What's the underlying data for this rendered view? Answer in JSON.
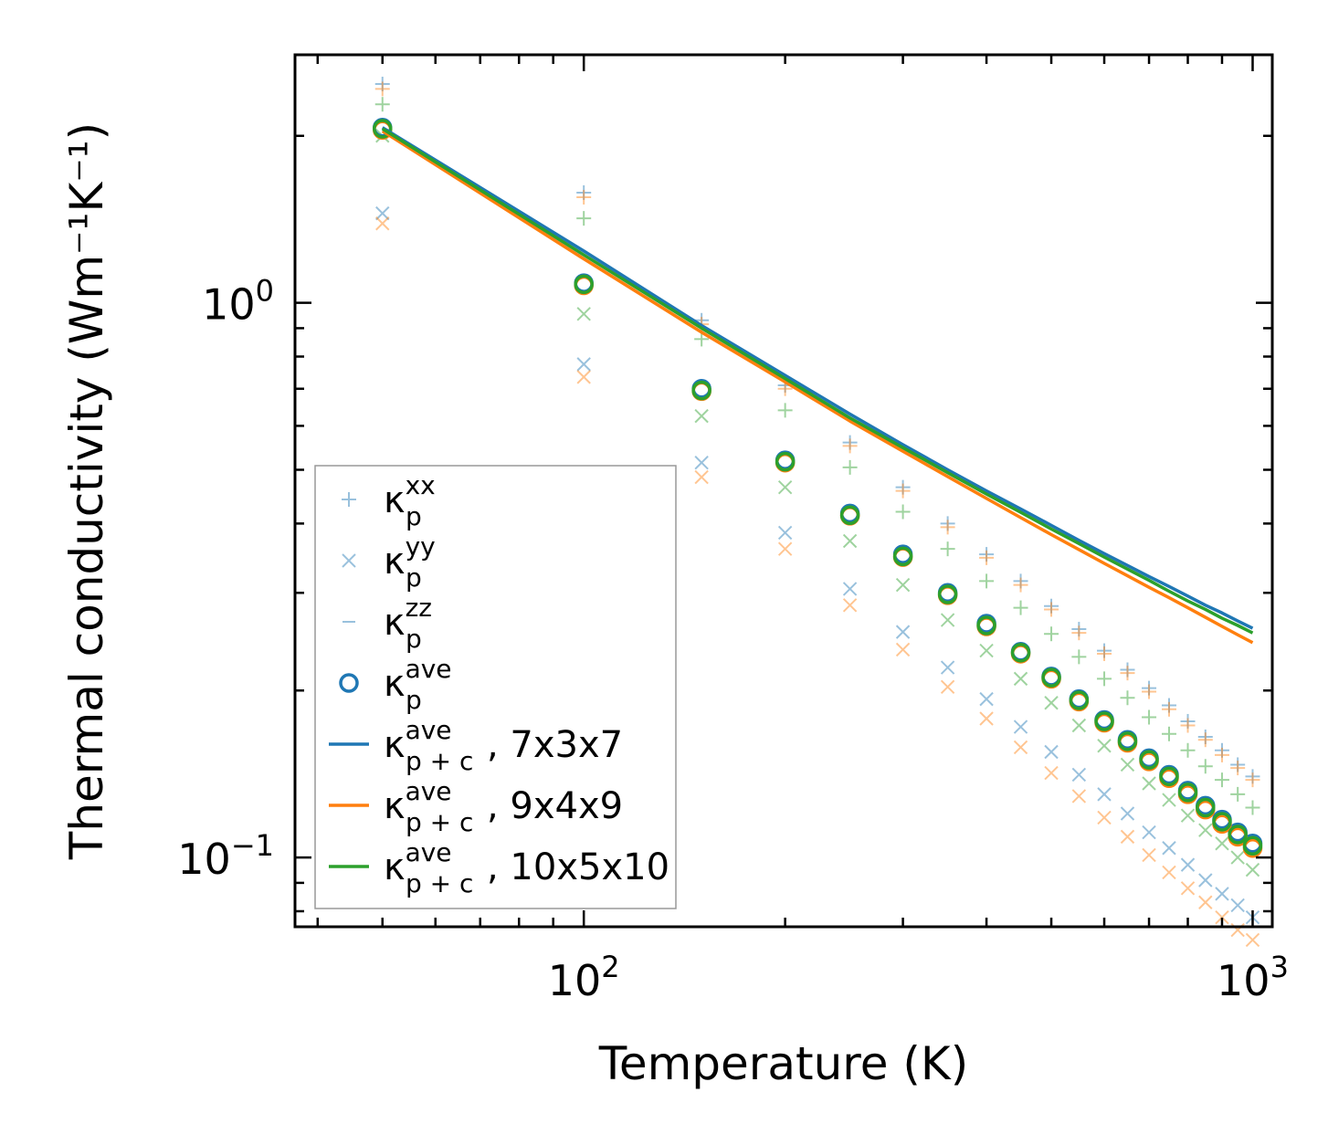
{
  "chart_data": {
    "type": "scatter",
    "title": "",
    "xlabel": "Temperature (K)",
    "ylabel": "Thermal conductivity (Wm⁻¹K⁻¹)",
    "xscale": "log",
    "yscale": "log",
    "xlim": [
      37,
      1070
    ],
    "ylim": [
      0.075,
      2.8
    ],
    "xticks": [
      {
        "base": "10",
        "exp": "2",
        "value": 100
      },
      {
        "base": "10",
        "exp": "3",
        "value": 1000
      }
    ],
    "yticks": [
      {
        "base": "10",
        "exp": "−1",
        "value": 0.1
      },
      {
        "base": "10",
        "exp": "0",
        "value": 1
      }
    ],
    "legend_position": "lower-left",
    "temperatures": [
      50,
      100,
      150,
      200,
      250,
      300,
      350,
      400,
      450,
      500,
      550,
      600,
      650,
      700,
      750,
      800,
      850,
      900,
      950,
      1000
    ],
    "series": [
      {
        "name": "kxx-blue",
        "marker": "plus",
        "color": "#1f77b4",
        "alpha": 0.45,
        "values": [
          2.48,
          1.58,
          0.93,
          0.71,
          0.56,
          0.465,
          0.4,
          0.352,
          0.315,
          0.284,
          0.258,
          0.236,
          0.218,
          0.202,
          0.188,
          0.176,
          0.165,
          0.156,
          0.147,
          0.14
        ]
      },
      {
        "name": "kxx-orange",
        "marker": "plus",
        "color": "#ff7f0e",
        "alpha": 0.45,
        "values": [
          2.43,
          1.55,
          0.915,
          0.7,
          0.552,
          0.458,
          0.394,
          0.347,
          0.31,
          0.28,
          0.254,
          0.233,
          0.215,
          0.199,
          0.185,
          0.173,
          0.163,
          0.153,
          0.145,
          0.138
        ]
      },
      {
        "name": "kxx-green",
        "marker": "plus",
        "color": "#2ca02c",
        "alpha": 0.45,
        "values": [
          2.28,
          1.42,
          0.86,
          0.64,
          0.505,
          0.42,
          0.36,
          0.315,
          0.282,
          0.253,
          0.23,
          0.21,
          0.194,
          0.179,
          0.167,
          0.156,
          0.146,
          0.138,
          0.13,
          0.123
        ]
      },
      {
        "name": "kyy-blue",
        "marker": "x",
        "color": "#1f77b4",
        "alpha": 0.45,
        "values": [
          1.45,
          0.775,
          0.515,
          0.385,
          0.305,
          0.255,
          0.22,
          0.193,
          0.172,
          0.155,
          0.141,
          0.13,
          0.12,
          0.111,
          0.104,
          0.097,
          0.091,
          0.086,
          0.082,
          0.078
        ]
      },
      {
        "name": "kyy-orange",
        "marker": "x",
        "color": "#ff7f0e",
        "alpha": 0.45,
        "values": [
          1.39,
          0.735,
          0.485,
          0.36,
          0.285,
          0.237,
          0.203,
          0.178,
          0.158,
          0.142,
          0.129,
          0.118,
          0.109,
          0.101,
          0.094,
          0.088,
          0.083,
          0.078,
          0.074,
          0.071
        ]
      },
      {
        "name": "kyy-green",
        "marker": "x",
        "color": "#2ca02c",
        "alpha": 0.45,
        "values": [
          2.0,
          0.955,
          0.625,
          0.465,
          0.372,
          0.31,
          0.268,
          0.236,
          0.21,
          0.19,
          0.173,
          0.159,
          0.147,
          0.136,
          0.127,
          0.119,
          0.112,
          0.106,
          0.1,
          0.095
        ]
      },
      {
        "name": "kave-blue",
        "marker": "circle",
        "color": "#1f77b4",
        "alpha": 1,
        "values": [
          2.07,
          1.085,
          0.7,
          0.52,
          0.417,
          0.352,
          0.3,
          0.264,
          0.235,
          0.212,
          0.193,
          0.177,
          0.163,
          0.151,
          0.141,
          0.132,
          0.124,
          0.117,
          0.111,
          0.106
        ]
      },
      {
        "name": "kave-orange",
        "marker": "circle",
        "color": "#ff7f0e",
        "alpha": 1,
        "values": [
          2.05,
          1.075,
          0.693,
          0.515,
          0.413,
          0.348,
          0.297,
          0.261,
          0.233,
          0.21,
          0.191,
          0.175,
          0.161,
          0.149,
          0.139,
          0.13,
          0.122,
          0.115,
          0.109,
          0.104
        ]
      },
      {
        "name": "kave-green",
        "marker": "circle",
        "color": "#2ca02c",
        "alpha": 1,
        "values": [
          2.06,
          1.08,
          0.695,
          0.517,
          0.414,
          0.349,
          0.298,
          0.262,
          0.234,
          0.211,
          0.192,
          0.176,
          0.162,
          0.15,
          0.14,
          0.131,
          0.123,
          0.116,
          0.11,
          0.105
        ]
      },
      {
        "name": "kpc-7x3x7",
        "marker": "line",
        "color": "#1f77b4",
        "alpha": 1,
        "values": [
          2.07,
          1.24,
          0.91,
          0.74,
          0.63,
          0.555,
          0.5,
          0.458,
          0.425,
          0.397,
          0.373,
          0.353,
          0.336,
          0.321,
          0.308,
          0.296,
          0.285,
          0.276,
          0.267,
          0.259
        ]
      },
      {
        "name": "kpc-9x4x9",
        "marker": "line",
        "color": "#ff7f0e",
        "alpha": 1,
        "values": [
          2.04,
          1.2,
          0.885,
          0.72,
          0.612,
          0.54,
          0.486,
          0.444,
          0.41,
          0.382,
          0.359,
          0.339,
          0.322,
          0.307,
          0.294,
          0.282,
          0.271,
          0.261,
          0.252,
          0.244
        ]
      },
      {
        "name": "kpc-10x5x10",
        "marker": "line",
        "color": "#2ca02c",
        "alpha": 1,
        "values": [
          2.06,
          1.22,
          0.9,
          0.73,
          0.62,
          0.548,
          0.494,
          0.452,
          0.419,
          0.391,
          0.368,
          0.348,
          0.331,
          0.316,
          0.302,
          0.29,
          0.28,
          0.27,
          0.262,
          0.254
        ]
      }
    ],
    "legend": [
      {
        "sym": "plus",
        "color": "#1f77b4",
        "alpha": 0.45,
        "label": "κ",
        "sub": "p",
        "sup": "xx",
        "extra": ""
      },
      {
        "sym": "x",
        "color": "#1f77b4",
        "alpha": 0.45,
        "label": "κ",
        "sub": "p",
        "sup": "yy",
        "extra": ""
      },
      {
        "sym": "dash",
        "color": "#1f77b4",
        "alpha": 0.45,
        "label": "κ",
        "sub": "p",
        "sup": "zz",
        "extra": ""
      },
      {
        "sym": "circle",
        "color": "#1f77b4",
        "alpha": 1,
        "label": "κ",
        "sub": "p",
        "sup": "ave",
        "extra": ""
      },
      {
        "sym": "line",
        "color": "#1f77b4",
        "alpha": 1,
        "label": "κ",
        "sub": "p + c",
        "sup": "ave",
        "extra": ", 7x3x7"
      },
      {
        "sym": "line",
        "color": "#ff7f0e",
        "alpha": 1,
        "label": "κ",
        "sub": "p + c",
        "sup": "ave",
        "extra": ", 9x4x9"
      },
      {
        "sym": "line",
        "color": "#2ca02c",
        "alpha": 1,
        "label": "κ",
        "sub": "p + c",
        "sup": "ave",
        "extra": ", 10x5x10"
      }
    ]
  }
}
